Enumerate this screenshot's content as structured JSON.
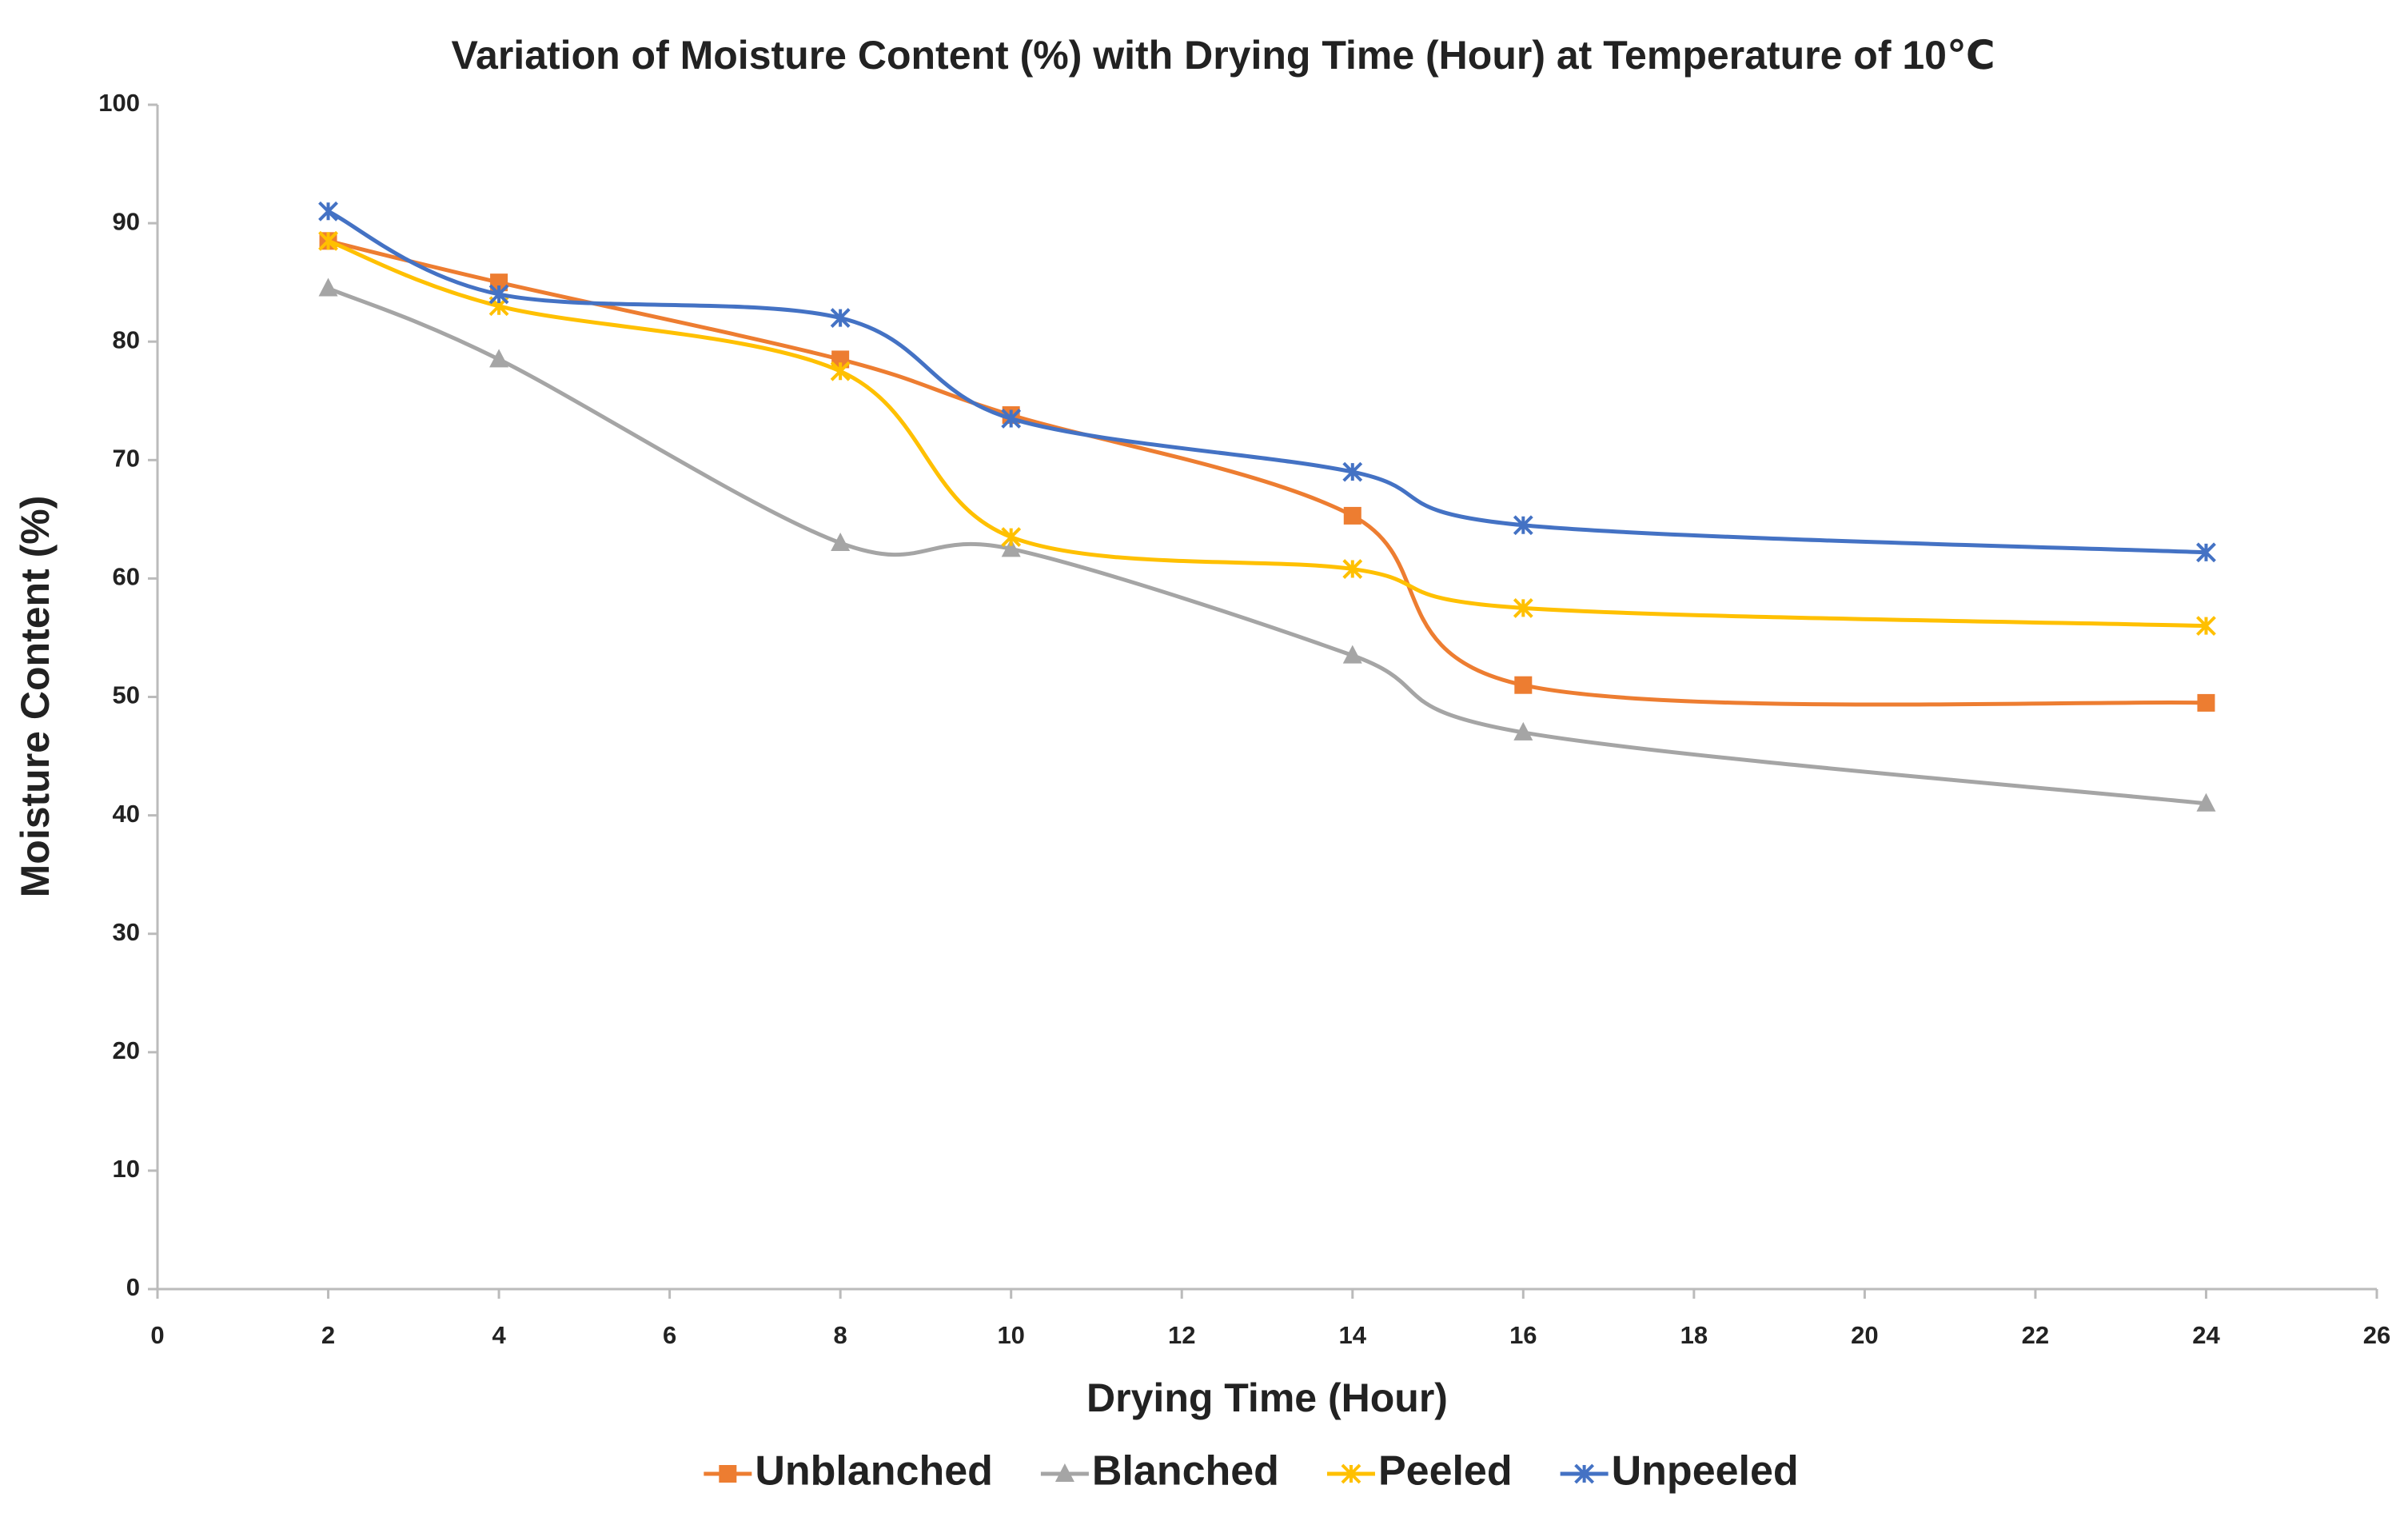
{
  "chart_data": {
    "type": "line",
    "title": "Variation of Moisture Content (%) with Drying Time (Hour) at Temperature of 10℃",
    "x_label": "Drying Time (Hour)",
    "y_label": "Moisture Content (%)",
    "x": [
      2,
      4,
      8,
      10,
      14,
      16,
      24
    ],
    "series": [
      {
        "name": "Unblanched",
        "color": "#ed7d31",
        "marker": "square",
        "values": [
          88.5,
          85,
          78.5,
          73.8,
          65.3,
          51,
          49.5
        ]
      },
      {
        "name": "Blanched",
        "color": "#a5a5a5",
        "marker": "triangle",
        "values": [
          84.5,
          78.5,
          63,
          62.5,
          53.5,
          47,
          41
        ]
      },
      {
        "name": "Peeled",
        "color": "#ffc000",
        "marker": "star",
        "values": [
          88.5,
          83,
          77.5,
          63.5,
          60.8,
          57.5,
          56
        ]
      },
      {
        "name": "Unpeeled",
        "color": "#4472c4",
        "marker": "star",
        "values": [
          91,
          84,
          82,
          73.5,
          69,
          64.5,
          62.2
        ]
      }
    ],
    "xlim": [
      0,
      26
    ],
    "xticks": [
      0,
      2,
      4,
      6,
      8,
      10,
      12,
      14,
      16,
      18,
      20,
      22,
      24,
      26
    ],
    "ylim": [
      0,
      100
    ],
    "yticks": [
      0,
      10,
      20,
      30,
      40,
      50,
      60,
      70,
      80,
      90,
      100
    ],
    "grid": false,
    "smooth": true,
    "legend": "bottom"
  }
}
